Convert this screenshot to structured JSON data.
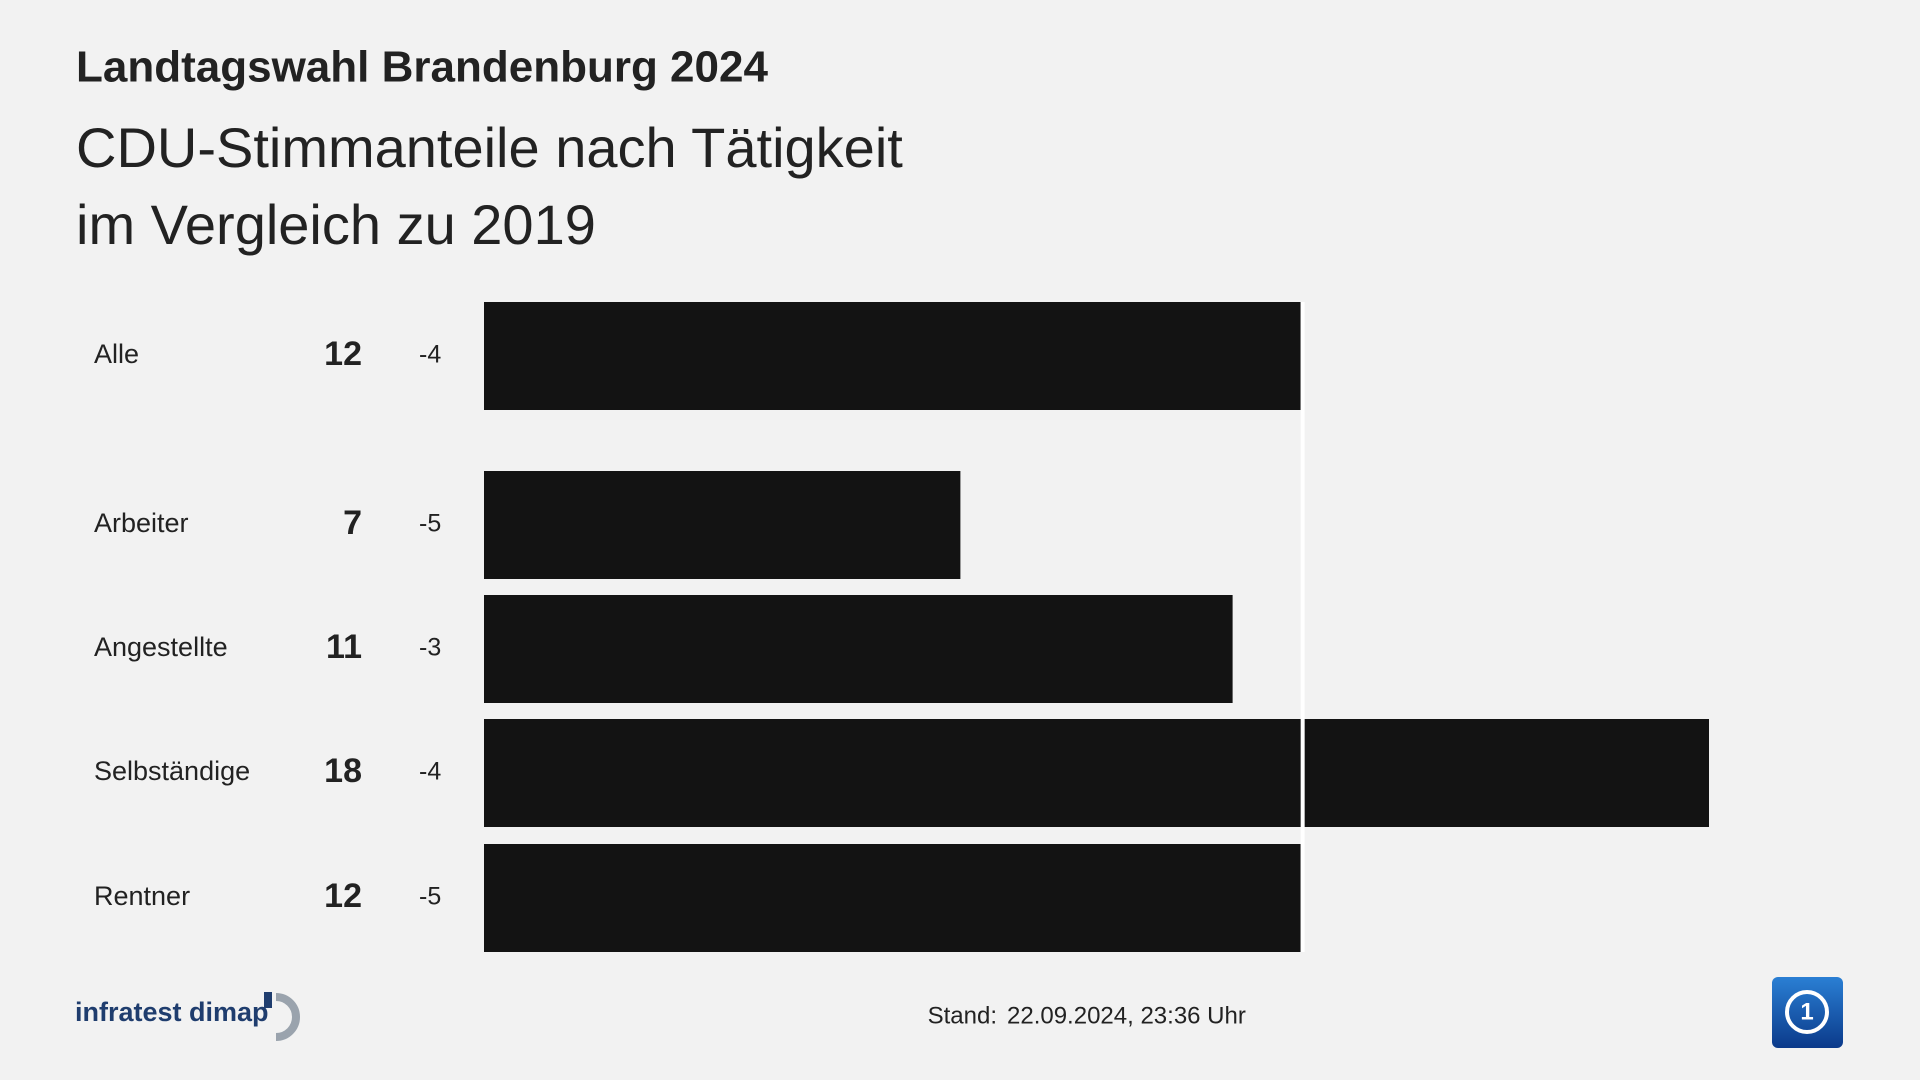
{
  "chart_data": {
    "type": "bar",
    "title": "Landtagswahl Brandenburg 2024",
    "subtitle": [
      "CDU-Stimmanteile nach Tätigkeit",
      "im Vergleich zu 2019"
    ],
    "categories": [
      "Alle",
      "Arbeiter",
      "Angestellte",
      "Selbständige",
      "Rentner"
    ],
    "values": [
      12,
      7,
      11,
      18,
      12
    ],
    "changes": [
      -4,
      -5,
      -3,
      -4,
      -5
    ],
    "color": "#131313"
  },
  "footer": {
    "source": "infratest dimap",
    "stand_label": "Stand:",
    "stand": "22.09.2024, 23:36 Uhr"
  }
}
